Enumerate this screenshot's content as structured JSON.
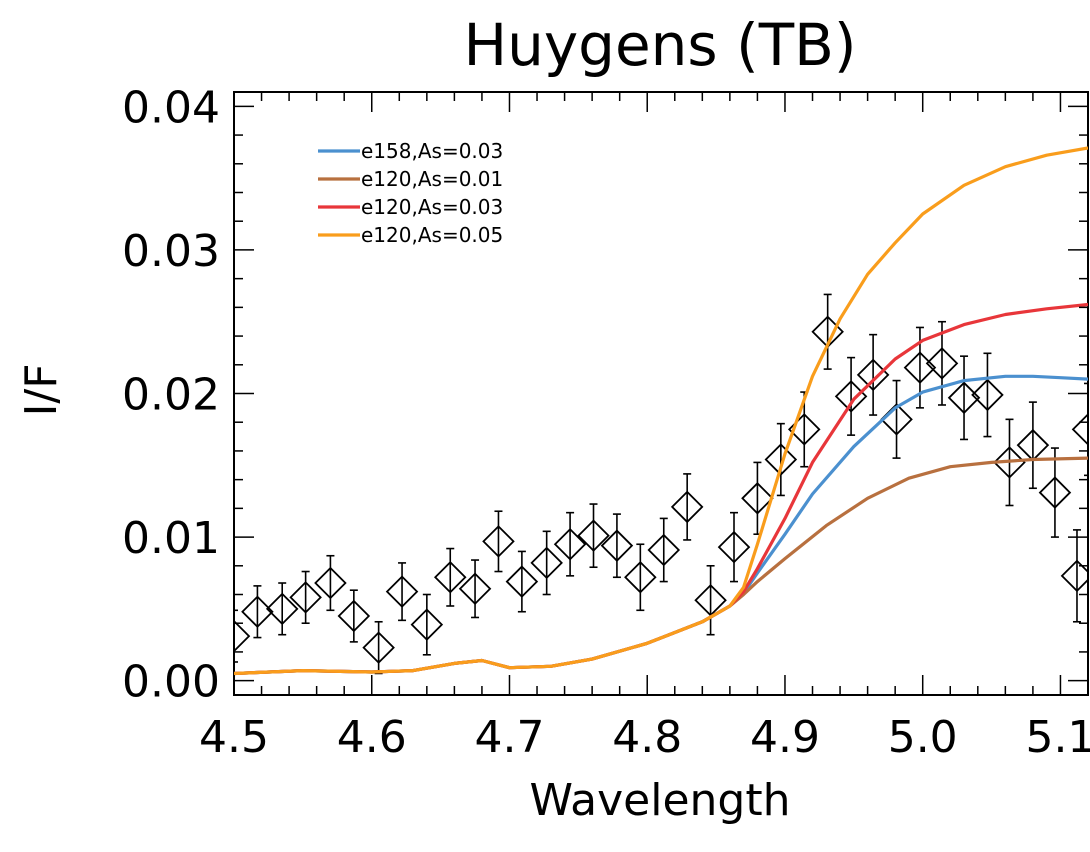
{
  "chart_data": {
    "type": "line",
    "title": "Huygens (TB)",
    "xlabel": "Wavelength",
    "ylabel": "I/F",
    "xlim": [
      4.5,
      5.12
    ],
    "ylim": [
      -0.001,
      0.041
    ],
    "xticks": [
      {
        "value": 4.5,
        "label": "4.5"
      },
      {
        "value": 4.6,
        "label": "4.6"
      },
      {
        "value": 4.7,
        "label": "4.7"
      },
      {
        "value": 4.8,
        "label": "4.8"
      },
      {
        "value": 4.9,
        "label": "4.9"
      },
      {
        "value": 5.0,
        "label": "5.0"
      },
      {
        "value": 5.1,
        "label": "5.1"
      }
    ],
    "yticks": [
      {
        "value": 0.0,
        "label": "0.00"
      },
      {
        "value": 0.01,
        "label": "0.01"
      },
      {
        "value": 0.02,
        "label": "0.02"
      },
      {
        "value": 0.03,
        "label": "0.03"
      },
      {
        "value": 0.04,
        "label": "0.04"
      }
    ],
    "legend_position": "top-left",
    "grid": false,
    "series": [
      {
        "name": "e158,As=0.03",
        "color": "#4b90cf",
        "x": [
          4.5,
          4.55,
          4.6,
          4.63,
          4.66,
          4.68,
          4.7,
          4.73,
          4.76,
          4.8,
          4.84,
          4.86,
          4.87,
          4.88,
          4.9,
          4.92,
          4.95,
          4.98,
          5.0,
          5.03,
          5.06,
          5.08,
          5.1,
          5.12
        ],
        "y": [
          0.0005,
          0.0007,
          0.0006,
          0.0007,
          0.0012,
          0.0014,
          0.0009,
          0.001,
          0.0015,
          0.0026,
          0.0041,
          0.0052,
          0.0061,
          0.0075,
          0.0102,
          0.013,
          0.0163,
          0.019,
          0.0201,
          0.0209,
          0.0212,
          0.0212,
          0.0211,
          0.021
        ]
      },
      {
        "name": "e120,As=0.01",
        "color": "#b8703f",
        "x": [
          4.5,
          4.55,
          4.6,
          4.63,
          4.66,
          4.68,
          4.7,
          4.73,
          4.76,
          4.8,
          4.84,
          4.86,
          4.87,
          4.88,
          4.9,
          4.93,
          4.96,
          4.99,
          5.02,
          5.05,
          5.08,
          5.12
        ],
        "y": [
          0.0005,
          0.0007,
          0.0006,
          0.0007,
          0.0012,
          0.0014,
          0.0009,
          0.001,
          0.0015,
          0.0026,
          0.0041,
          0.0052,
          0.006,
          0.0069,
          0.0085,
          0.0108,
          0.0127,
          0.0141,
          0.0149,
          0.0152,
          0.0154,
          0.0155
        ]
      },
      {
        "name": "e120,As=0.03",
        "color": "#e8363a",
        "x": [
          4.5,
          4.55,
          4.6,
          4.63,
          4.66,
          4.68,
          4.7,
          4.73,
          4.76,
          4.8,
          4.84,
          4.86,
          4.87,
          4.88,
          4.9,
          4.92,
          4.95,
          4.98,
          5.0,
          5.03,
          5.06,
          5.09,
          5.12
        ],
        "y": [
          0.0005,
          0.0007,
          0.0006,
          0.0007,
          0.0012,
          0.0014,
          0.0009,
          0.001,
          0.0015,
          0.0026,
          0.0041,
          0.0052,
          0.0062,
          0.0078,
          0.0113,
          0.0152,
          0.0196,
          0.0224,
          0.0237,
          0.0248,
          0.0255,
          0.0259,
          0.0262
        ]
      },
      {
        "name": "e120,As=0.05",
        "color": "#f99d1c",
        "x": [
          4.5,
          4.55,
          4.6,
          4.63,
          4.66,
          4.68,
          4.7,
          4.73,
          4.76,
          4.8,
          4.84,
          4.86,
          4.87,
          4.88,
          4.9,
          4.92,
          4.94,
          4.96,
          4.98,
          5.0,
          5.03,
          5.06,
          5.09,
          5.12
        ],
        "y": [
          0.0005,
          0.0007,
          0.0006,
          0.0007,
          0.0012,
          0.0014,
          0.0009,
          0.001,
          0.0015,
          0.0026,
          0.0041,
          0.0052,
          0.0065,
          0.0095,
          0.0158,
          0.0212,
          0.0252,
          0.0283,
          0.0305,
          0.0325,
          0.0345,
          0.0358,
          0.0366,
          0.0371
        ]
      }
    ],
    "observations": {
      "marker": "diamond",
      "points": [
        {
          "x": 4.5,
          "y": 0.0031,
          "err": 0.0018
        },
        {
          "x": 4.517,
          "y": 0.0048,
          "err": 0.0018
        },
        {
          "x": 4.535,
          "y": 0.005,
          "err": 0.0018
        },
        {
          "x": 4.552,
          "y": 0.0058,
          "err": 0.0018
        },
        {
          "x": 4.57,
          "y": 0.0068,
          "err": 0.0019
        },
        {
          "x": 4.587,
          "y": 0.0045,
          "err": 0.0018
        },
        {
          "x": 4.605,
          "y": 0.0023,
          "err": 0.0018
        },
        {
          "x": 4.622,
          "y": 0.0062,
          "err": 0.002
        },
        {
          "x": 4.64,
          "y": 0.0039,
          "err": 0.0021
        },
        {
          "x": 4.657,
          "y": 0.0072,
          "err": 0.002
        },
        {
          "x": 4.675,
          "y": 0.0064,
          "err": 0.002
        },
        {
          "x": 4.692,
          "y": 0.0097,
          "err": 0.0021
        },
        {
          "x": 4.709,
          "y": 0.0069,
          "err": 0.0021
        },
        {
          "x": 4.727,
          "y": 0.0082,
          "err": 0.0022
        },
        {
          "x": 4.744,
          "y": 0.0095,
          "err": 0.0022
        },
        {
          "x": 4.761,
          "y": 0.0101,
          "err": 0.0022
        },
        {
          "x": 4.778,
          "y": 0.0094,
          "err": 0.0022
        },
        {
          "x": 4.795,
          "y": 0.0072,
          "err": 0.0023
        },
        {
          "x": 4.812,
          "y": 0.0091,
          "err": 0.0022
        },
        {
          "x": 4.829,
          "y": 0.0121,
          "err": 0.0023
        },
        {
          "x": 4.846,
          "y": 0.0056,
          "err": 0.0024
        },
        {
          "x": 4.863,
          "y": 0.0093,
          "err": 0.0024
        },
        {
          "x": 4.88,
          "y": 0.0127,
          "err": 0.0025
        },
        {
          "x": 4.897,
          "y": 0.0154,
          "err": 0.0025
        },
        {
          "x": 4.914,
          "y": 0.0175,
          "err": 0.0026
        },
        {
          "x": 4.931,
          "y": 0.0243,
          "err": 0.0026
        },
        {
          "x": 4.948,
          "y": 0.0198,
          "err": 0.0027
        },
        {
          "x": 4.964,
          "y": 0.0213,
          "err": 0.0028
        },
        {
          "x": 4.981,
          "y": 0.0182,
          "err": 0.0027
        },
        {
          "x": 4.998,
          "y": 0.0218,
          "err": 0.0028
        },
        {
          "x": 5.014,
          "y": 0.0221,
          "err": 0.0029
        },
        {
          "x": 5.03,
          "y": 0.0197,
          "err": 0.0029
        },
        {
          "x": 5.047,
          "y": 0.0199,
          "err": 0.0029
        },
        {
          "x": 5.063,
          "y": 0.0152,
          "err": 0.003
        },
        {
          "x": 5.08,
          "y": 0.0164,
          "err": 0.003
        },
        {
          "x": 5.096,
          "y": 0.0131,
          "err": 0.0031
        },
        {
          "x": 5.112,
          "y": 0.0073,
          "err": 0.0032
        },
        {
          "x": 5.12,
          "y": 0.0175,
          "err": 0.0032
        }
      ]
    }
  }
}
